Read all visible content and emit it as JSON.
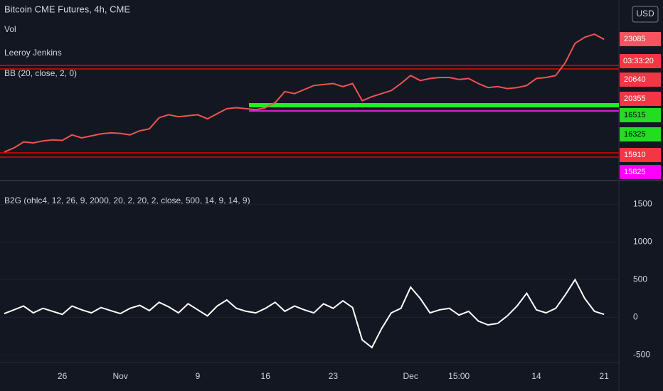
{
  "chart_data": [
    {
      "type": "line",
      "title": "Bitcoin CME Futures, 4h, CME",
      "legend": [
        "Vol",
        "Leeroy Jenkins",
        "BB (20, close, 2, 0)"
      ],
      "currency": "USD",
      "color": "#ef5350",
      "ylim": [
        9200,
        27000
      ],
      "values": [
        11900,
        12300,
        12900,
        12800,
        13000,
        13100,
        13050,
        13600,
        13300,
        13500,
        13700,
        13800,
        13750,
        13600,
        14000,
        14200,
        15300,
        15600,
        15400,
        15500,
        15600,
        15200,
        15700,
        16200,
        16300,
        16200,
        16100,
        16300,
        16800,
        17900,
        17700,
        18100,
        18500,
        18600,
        18700,
        18400,
        18700,
        17000,
        17400,
        17700,
        18000,
        18700,
        19500,
        19000,
        19200,
        19300,
        19300,
        19100,
        19200,
        18700,
        18300,
        18400,
        18200,
        18300,
        18500,
        19200,
        19300,
        19500,
        20800,
        22700,
        23300,
        23600,
        23085
      ],
      "price_labels": [
        23085,
        20640,
        20355,
        16515,
        16325,
        15910,
        15825
      ],
      "price_label_colors": [
        "#f7525f",
        "#f23645",
        "#f23645",
        "#22dd22",
        "#22dd22",
        "#f23645",
        "#ff00ff"
      ],
      "countdown": "03:33:20"
    },
    {
      "type": "line",
      "title": "B2G (ohlc4, 12, 26, 9, 2000, 20, 2, 20, 2, close, 500, 14, 9, 14, 9)",
      "color": "#ffffff",
      "ylim": [
        -600,
        1740
      ],
      "yticks": [
        1500,
        1000,
        500,
        0,
        -500
      ],
      "categories": [
        null,
        null,
        null,
        null,
        null,
        null,
        "26",
        null,
        null,
        null,
        null,
        null,
        "Nov",
        null,
        null,
        null,
        null,
        null,
        null,
        null,
        "9",
        null,
        null,
        null,
        null,
        null,
        null,
        "16",
        null,
        null,
        null,
        null,
        null,
        null,
        "23",
        null,
        null,
        null,
        null,
        null,
        null,
        null,
        "Dec",
        null,
        null,
        null,
        null,
        "15:00",
        null,
        null,
        null,
        null,
        null,
        null,
        null,
        "14",
        null,
        null,
        null,
        null,
        null,
        null,
        "21"
      ],
      "values": [
        50,
        100,
        150,
        60,
        120,
        80,
        40,
        150,
        100,
        60,
        130,
        90,
        50,
        120,
        160,
        90,
        200,
        140,
        60,
        180,
        100,
        20,
        150,
        230,
        120,
        80,
        60,
        120,
        200,
        80,
        150,
        100,
        60,
        180,
        120,
        220,
        130,
        -300,
        -400,
        -150,
        60,
        120,
        400,
        250,
        60,
        100,
        120,
        30,
        80,
        -50,
        -100,
        -80,
        20,
        150,
        320,
        100,
        60,
        120,
        300,
        500,
        250,
        80,
        40
      ]
    }
  ]
}
